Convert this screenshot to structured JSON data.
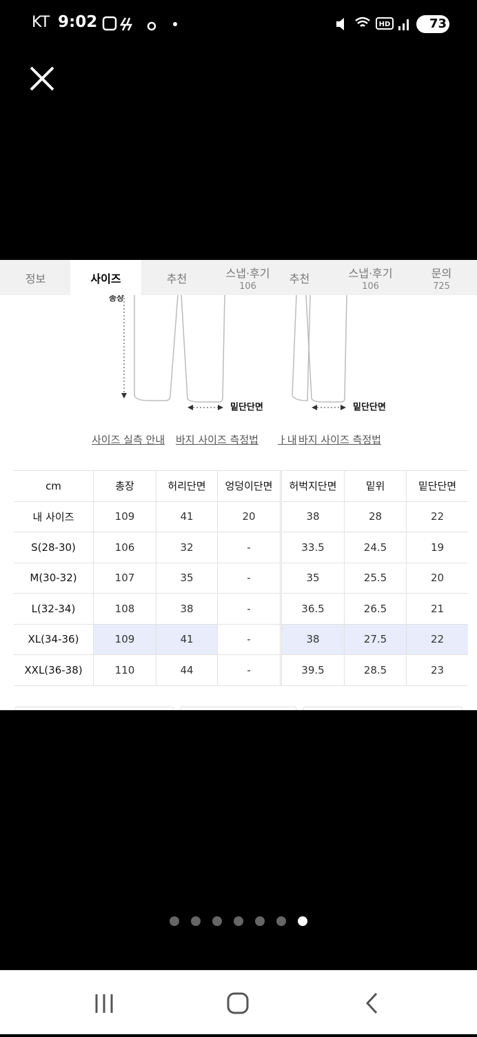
{
  "status_bar": {
    "carrier": "KT",
    "time": "9:02",
    "battery": "73"
  },
  "tabs": [
    {
      "label": "정보"
    },
    {
      "label": "사이즈",
      "active": true
    },
    {
      "label": "추천"
    },
    {
      "label": "스냅·후기",
      "count": "106"
    },
    {
      "label": "추천"
    },
    {
      "label": "스냅·후기",
      "count": "106"
    },
    {
      "label": "문의",
      "count": "725"
    }
  ],
  "diagram": {
    "length_label": "총장",
    "hem_labels": [
      "밑단단면",
      "밑단단면"
    ]
  },
  "links": [
    "사이즈 실측 안내",
    "바지 사이즈 측정법",
    "ㅏ내",
    "바지 사이즈 측정법"
  ],
  "table": {
    "header": [
      "cm",
      "총장",
      "허리단면",
      "엉덩이단면",
      "허벅지단면",
      "밑위",
      "밑단단면"
    ],
    "rows": [
      [
        "내 사이즈",
        "109",
        "41",
        "20",
        "38",
        "28",
        "22"
      ],
      [
        "S(28-30)",
        "106",
        "32",
        "-",
        "33.5",
        "24.5",
        "19"
      ],
      [
        "M(30-32)",
        "107",
        "35",
        "-",
        "35",
        "25.5",
        "20"
      ],
      [
        "L(32-34)",
        "108",
        "38",
        "-",
        "36.5",
        "26.5",
        "21"
      ],
      [
        "XL(34-36)",
        "109",
        "41",
        "-",
        "38",
        "27.5",
        "22"
      ],
      [
        "XXL(36-38)",
        "110",
        "44",
        "-",
        "39.5",
        "28.5",
        "23"
      ]
    ],
    "highlight": {
      "row": 4,
      "skip_column": 3,
      "color": "#e8ecfb"
    }
  },
  "page_dots": {
    "count": 7,
    "active": 6
  }
}
